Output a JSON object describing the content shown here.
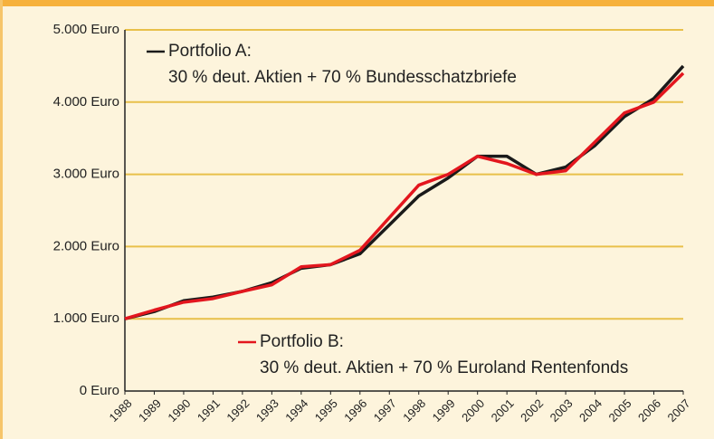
{
  "chart_data": {
    "type": "line",
    "x": [
      1988,
      1989,
      1990,
      1991,
      1992,
      1993,
      1994,
      1995,
      1996,
      1997,
      1998,
      1999,
      2000,
      2001,
      2002,
      2003,
      2004,
      2005,
      2006,
      2007
    ],
    "xlim": [
      1988,
      2007
    ],
    "xticks": [
      1988,
      1989,
      1990,
      1991,
      1992,
      1993,
      1994,
      1995,
      1996,
      1997,
      1998,
      1999,
      2000,
      2001,
      2002,
      2003,
      2004,
      2005,
      2006,
      2007
    ],
    "ylim": [
      0,
      5000
    ],
    "yticks": [
      {
        "value": 0,
        "label": "0 Euro"
      },
      {
        "value": 1000,
        "label": "1.000 Euro"
      },
      {
        "value": 2000,
        "label": "2.000 Euro"
      },
      {
        "value": 3000,
        "label": "3.000 Euro"
      },
      {
        "value": 4000,
        "label": "4.000 Euro"
      },
      {
        "value": 5000,
        "label": "5.000 Euro"
      }
    ],
    "grid": true,
    "series": [
      {
        "name": "Portfolio A:",
        "description": "30 % deut. Aktien + 70 % Bundesschatzbriefe",
        "color": "#1a1a1a",
        "values": [
          1000,
          1100,
          1250,
          1300,
          1380,
          1500,
          1700,
          1750,
          1900,
          2300,
          2700,
          2950,
          3250,
          3250,
          3000,
          3100,
          3400,
          3800,
          4050,
          4500
        ]
      },
      {
        "name": "Portfolio B:",
        "description": "30 % deut. Aktien + 70 % Euroland Rentenfonds",
        "color": "#e3161e",
        "values": [
          1000,
          1120,
          1230,
          1280,
          1380,
          1470,
          1720,
          1750,
          1950,
          2400,
          2850,
          3000,
          3250,
          3150,
          3000,
          3050,
          3450,
          3850,
          4000,
          4400
        ]
      }
    ]
  }
}
